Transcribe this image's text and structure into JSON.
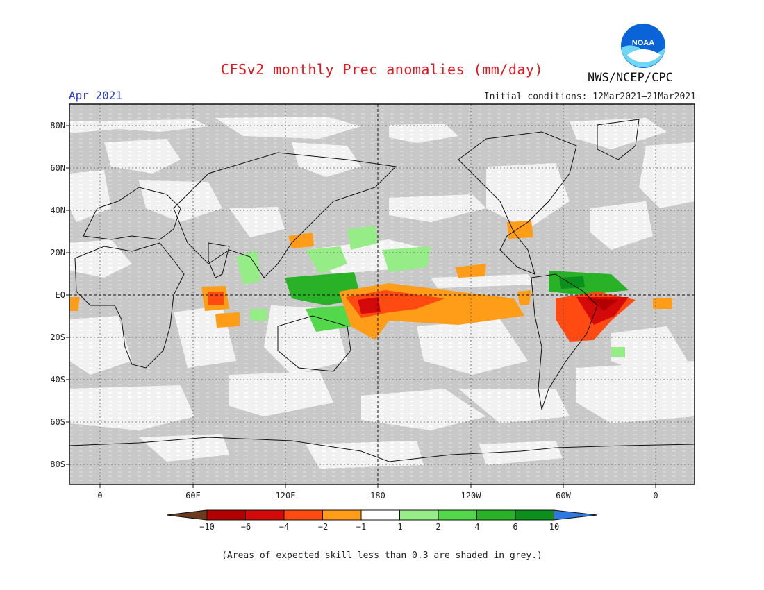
{
  "header": {
    "title": "CFSv2 monthly Prec anomalies (mm/day)",
    "month": "Apr 2021",
    "initial_conditions": "Initial conditions: 12Mar2021–21Mar2021",
    "agency": "NWS/NCEP/CPC",
    "logo_text": "NOAA"
  },
  "map": {
    "lat_labels": [
      "80N",
      "60N",
      "40N",
      "20N",
      "EQ",
      "20S",
      "40S",
      "60S",
      "80S"
    ],
    "lon_labels": [
      "0",
      "60E",
      "120E",
      "180",
      "120W",
      "60W",
      "0"
    ]
  },
  "colorbar": {
    "tick_labels": [
      "−10",
      "−6",
      "−4",
      "−2",
      "−1",
      "1",
      "2",
      "4",
      "6",
      "10"
    ],
    "colors": [
      "#6b3a1f",
      "#b30000",
      "#d40a0a",
      "#ff4a12",
      "#ff9c18",
      "#ffffff",
      "#96ec86",
      "#52d84a",
      "#29b128",
      "#0c901c",
      "#2f78e0"
    ]
  },
  "footer": {
    "note": "(Areas of expected skill less than 0.3 are shaded in grey.)"
  }
}
